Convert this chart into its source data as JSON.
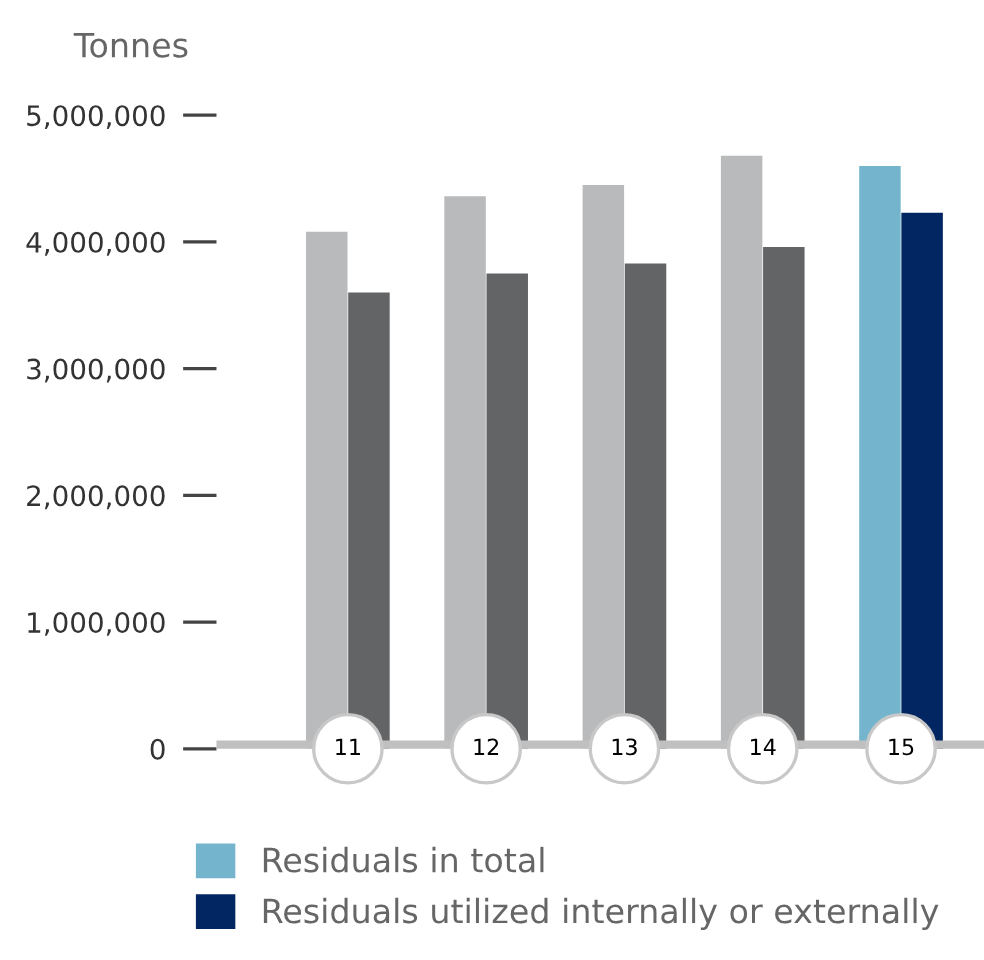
{
  "chart_data": {
    "type": "bar",
    "ylabel": "Tonnes",
    "categories": [
      "11",
      "12",
      "13",
      "14",
      "15"
    ],
    "series": [
      {
        "name": "Residuals in total",
        "color": "#74b4cc",
        "colors": [
          "#b9babc",
          "#b9babc",
          "#b9babc",
          "#b9babc",
          "#74b4cc"
        ],
        "values": [
          4080000,
          4360000,
          4450000,
          4680000,
          4600000
        ]
      },
      {
        "name": "Residuals utilized internally or externally",
        "color": "#022661",
        "colors": [
          "#636466",
          "#636466",
          "#636466",
          "#636466",
          "#022661"
        ],
        "values": [
          3600000,
          3750000,
          3830000,
          3960000,
          4230000
        ]
      }
    ],
    "ylim": [
      0,
      5000000
    ],
    "yticks": [
      {
        "value": 0,
        "label": "0"
      },
      {
        "value": 1000000,
        "label": "1,000,000"
      },
      {
        "value": 2000000,
        "label": "2,000,000"
      },
      {
        "value": 3000000,
        "label": "3,000,000"
      },
      {
        "value": 4000000,
        "label": "4,000,000"
      },
      {
        "value": 5000000,
        "label": "5,000,000"
      }
    ],
    "grid": false,
    "legend": "bottom"
  }
}
